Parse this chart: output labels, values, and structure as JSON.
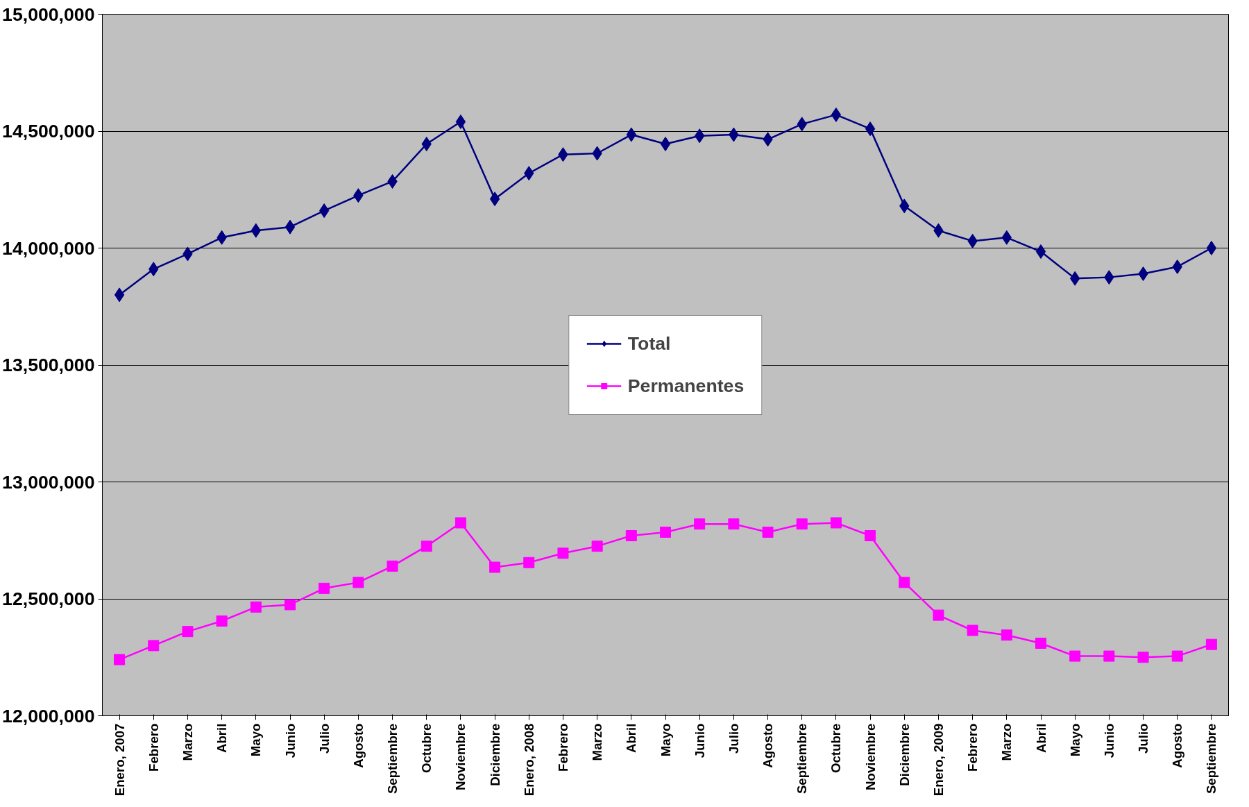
{
  "chart_data": {
    "type": "line",
    "categories": [
      "Enero, 2007",
      "Febrero",
      "Marzo",
      "Abril",
      "Mayo",
      "Junio",
      "Julio",
      "Agosto",
      "Septiembre",
      "Octubre",
      "Noviembre",
      "Diciembre",
      "Enero, 2008",
      "Febrero",
      "Marzo",
      "Abril",
      "Mayo",
      "Junio",
      "Julio",
      "Agosto",
      "Septiembre",
      "Octubre",
      "Noviembre",
      "Diciembre",
      "Enero, 2009",
      "Febrero",
      "Marzo",
      "Abril",
      "Mayo",
      "Junio",
      "Julio",
      "Agosto",
      "Septiembre"
    ],
    "series": [
      {
        "name": "Total",
        "color": "#000080",
        "marker": "diamond",
        "values": [
          13800000,
          13910000,
          13975000,
          14045000,
          14075000,
          14090000,
          14160000,
          14225000,
          14285000,
          14445000,
          14540000,
          14210000,
          14320000,
          14400000,
          14405000,
          14485000,
          14445000,
          14480000,
          14485000,
          14465000,
          14530000,
          14570000,
          14510000,
          14180000,
          14075000,
          14030000,
          14045000,
          13985000,
          13870000,
          13875000,
          13890000,
          13920000,
          14000000
        ]
      },
      {
        "name": "Permanentes",
        "color": "#ff00ff",
        "marker": "square",
        "values": [
          12240000,
          12300000,
          12360000,
          12405000,
          12465000,
          12475000,
          12545000,
          12570000,
          12640000,
          12725000,
          12825000,
          12635000,
          12655000,
          12695000,
          12725000,
          12770000,
          12785000,
          12820000,
          12820000,
          12785000,
          12820000,
          12825000,
          12770000,
          12570000,
          12430000,
          12365000,
          12345000,
          12310000,
          12255000,
          12255000,
          12250000,
          12255000,
          12305000
        ]
      }
    ],
    "ylim": [
      12000000,
      15000000
    ],
    "yticks": [
      {
        "value": 12000000,
        "label": "12,000,000"
      },
      {
        "value": 12500000,
        "label": "12,500,000"
      },
      {
        "value": 13000000,
        "label": "13,000,000"
      },
      {
        "value": 13500000,
        "label": "13,500,000"
      },
      {
        "value": 14000000,
        "label": "14,000,000"
      },
      {
        "value": 14500000,
        "label": "14,500,000"
      },
      {
        "value": 15000000,
        "label": "15,000,000"
      }
    ],
    "grid": "y",
    "legend": "center",
    "line_style": "solid"
  }
}
